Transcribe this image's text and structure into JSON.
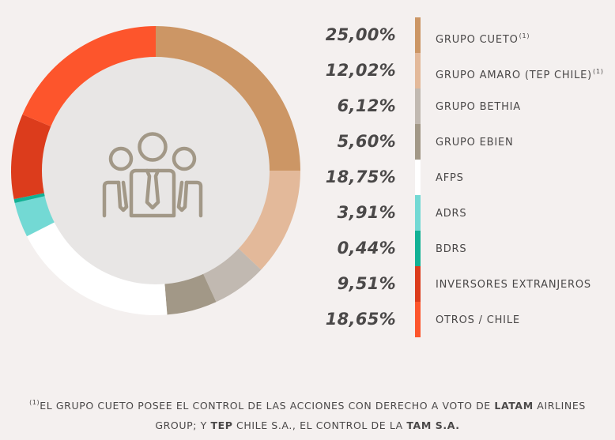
{
  "chart_data": {
    "type": "pie",
    "donut": true,
    "slices": [
      {
        "label": "GRUPO CUETO",
        "note": "(1)",
        "value": 25.0,
        "value_text": "25,00%",
        "color": "#cc9665"
      },
      {
        "label": "GRUPO AMARO (TEP CHILE)",
        "note": "(1)",
        "value": 12.02,
        "value_text": "12,02%",
        "color": "#e3b99a"
      },
      {
        "label": "GRUPO BETHIA",
        "note": "",
        "value": 6.12,
        "value_text": "6,12%",
        "color": "#c1b9b1"
      },
      {
        "label": "GRUPO EBIEN",
        "note": "",
        "value": 5.6,
        "value_text": "5,60%",
        "color": "#a29887"
      },
      {
        "label": "AFPS",
        "note": "",
        "value": 18.75,
        "value_text": "18,75%",
        "color": "#ffffff"
      },
      {
        "label": "ADRS",
        "note": "",
        "value": 3.91,
        "value_text": "3,91%",
        "color": "#73d9d4"
      },
      {
        "label": "BDRS",
        "note": "",
        "value": 0.44,
        "value_text": "0,44%",
        "color": "#12b195"
      },
      {
        "label": "INVERSORES EXTRANJEROS",
        "note": "",
        "value": 9.51,
        "value_text": "9,51%",
        "color": "#dc3c1c"
      },
      {
        "label": "OTROS / CHILE",
        "note": "",
        "value": 18.65,
        "value_text": "18,65%",
        "color": "#fd552c"
      }
    ],
    "legend": "right",
    "center_icon": "people-group-icon"
  },
  "colors": {
    "background": "#f4f0ef",
    "center_fill": "#e8e6e5",
    "icon": "#a29887",
    "text": "#4a4848"
  },
  "footnote": {
    "mark": "(1)",
    "p1": "EL GRUPO CUETO POSEE EL CONTROL DE LAS ACCIONES CON DERECHO A VOTO DE ",
    "b1": "LATAM",
    "p2": " AIRLINES GROUP; Y ",
    "b2": "TEP",
    "p3": " CHILE S.A., EL CONTROL DE LA ",
    "b3": "TAM S.A.",
    "p4": ""
  }
}
